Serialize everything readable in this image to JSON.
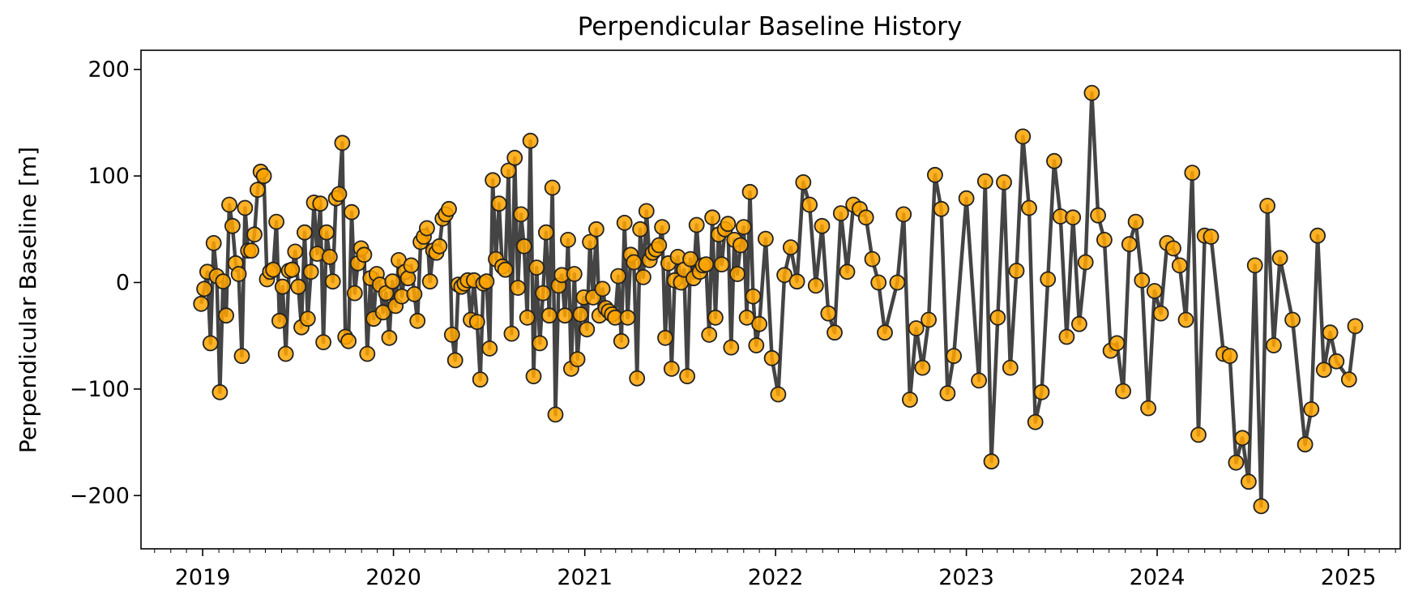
{
  "chart_data": {
    "type": "line",
    "title": "Perpendicular Baseline History",
    "xlabel": "",
    "ylabel": "Perpendicular Baseline [m]",
    "xlim": [
      "2018-09-05",
      "2025-04-10"
    ],
    "ylim": [
      -250,
      218
    ],
    "x_ticks": [
      "2019",
      "2020",
      "2021",
      "2022",
      "2023",
      "2024",
      "2025"
    ],
    "y_ticks": [
      {
        "value": 200,
        "label": "200"
      },
      {
        "value": 100,
        "label": "100"
      },
      {
        "value": 0,
        "label": "0"
      },
      {
        "value": -100,
        "label": "−100"
      },
      {
        "value": -200,
        "label": "−200"
      }
    ],
    "x_minor_ticks": "monthly",
    "grid": false,
    "legend": "none",
    "colors": {
      "line": "#444444",
      "marker_fill": "#FFA500",
      "marker_edge": "#222222",
      "background": "#ffffff"
    },
    "series": [
      {
        "marker": "circle",
        "points": [
          [
            "2018-12-29",
            -20
          ],
          [
            "2019-01-04",
            -6
          ],
          [
            "2019-01-10",
            10
          ],
          [
            "2019-01-16",
            -57
          ],
          [
            "2019-01-22",
            37
          ],
          [
            "2019-01-28",
            6
          ],
          [
            "2019-02-03",
            -103
          ],
          [
            "2019-02-09",
            1
          ],
          [
            "2019-02-15",
            -31
          ],
          [
            "2019-02-21",
            73
          ],
          [
            "2019-02-27",
            53
          ],
          [
            "2019-03-05",
            18
          ],
          [
            "2019-03-11",
            8
          ],
          [
            "2019-03-17",
            -69
          ],
          [
            "2019-03-23",
            70
          ],
          [
            "2019-03-29",
            30
          ],
          [
            "2019-04-04",
            30
          ],
          [
            "2019-04-10",
            45
          ],
          [
            "2019-04-16",
            87
          ],
          [
            "2019-04-22",
            104
          ],
          [
            "2019-04-28",
            100
          ],
          [
            "2019-05-04",
            3
          ],
          [
            "2019-05-10",
            10
          ],
          [
            "2019-05-16",
            12
          ],
          [
            "2019-05-22",
            57
          ],
          [
            "2019-05-28",
            -36
          ],
          [
            "2019-06-03",
            -4
          ],
          [
            "2019-06-09",
            -67
          ],
          [
            "2019-06-15",
            11
          ],
          [
            "2019-06-21",
            12
          ],
          [
            "2019-06-27",
            29
          ],
          [
            "2019-07-03",
            -4
          ],
          [
            "2019-07-09",
            -42
          ],
          [
            "2019-07-15",
            47
          ],
          [
            "2019-07-21",
            -34
          ],
          [
            "2019-07-27",
            10
          ],
          [
            "2019-08-02",
            75
          ],
          [
            "2019-08-08",
            27
          ],
          [
            "2019-08-14",
            74
          ],
          [
            "2019-08-20",
            -56
          ],
          [
            "2019-08-26",
            47
          ],
          [
            "2019-09-01",
            24
          ],
          [
            "2019-09-07",
            1
          ],
          [
            "2019-09-13",
            79
          ],
          [
            "2019-09-19",
            83
          ],
          [
            "2019-09-25",
            131
          ],
          [
            "2019-10-01",
            -51
          ],
          [
            "2019-10-07",
            -55
          ],
          [
            "2019-10-13",
            66
          ],
          [
            "2019-10-19",
            -10
          ],
          [
            "2019-10-25",
            18
          ],
          [
            "2019-10-31",
            32
          ],
          [
            "2019-11-06",
            26
          ],
          [
            "2019-11-12",
            -67
          ],
          [
            "2019-11-18",
            4
          ],
          [
            "2019-11-24",
            -34
          ],
          [
            "2019-11-30",
            8
          ],
          [
            "2019-12-06",
            -2
          ],
          [
            "2019-12-12",
            -28
          ],
          [
            "2019-12-18",
            -10
          ],
          [
            "2019-12-24",
            -52
          ],
          [
            "2019-12-30",
            1
          ],
          [
            "2020-01-05",
            -22
          ],
          [
            "2020-01-11",
            21
          ],
          [
            "2020-01-17",
            -13
          ],
          [
            "2020-01-23",
            10
          ],
          [
            "2020-01-29",
            4
          ],
          [
            "2020-02-04",
            16
          ],
          [
            "2020-02-10",
            -11
          ],
          [
            "2020-02-16",
            -36
          ],
          [
            "2020-02-22",
            38
          ],
          [
            "2020-02-28",
            43
          ],
          [
            "2020-03-05",
            51
          ],
          [
            "2020-03-11",
            1
          ],
          [
            "2020-03-17",
            30
          ],
          [
            "2020-03-23",
            28
          ],
          [
            "2020-03-29",
            34
          ],
          [
            "2020-04-04",
            60
          ],
          [
            "2020-04-10",
            64
          ],
          [
            "2020-04-16",
            69
          ],
          [
            "2020-04-22",
            -49
          ],
          [
            "2020-04-28",
            -73
          ],
          [
            "2020-05-04",
            -2
          ],
          [
            "2020-05-10",
            -4
          ],
          [
            "2020-05-16",
            -1
          ],
          [
            "2020-05-22",
            2
          ],
          [
            "2020-05-28",
            -35
          ],
          [
            "2020-06-03",
            2
          ],
          [
            "2020-06-09",
            -37
          ],
          [
            "2020-06-15",
            -91
          ],
          [
            "2020-06-21",
            -1
          ],
          [
            "2020-06-27",
            1
          ],
          [
            "2020-07-03",
            -62
          ],
          [
            "2020-07-09",
            96
          ],
          [
            "2020-07-15",
            22
          ],
          [
            "2020-07-21",
            74
          ],
          [
            "2020-07-27",
            15
          ],
          [
            "2020-08-02",
            12
          ],
          [
            "2020-08-08",
            105
          ],
          [
            "2020-08-14",
            -48
          ],
          [
            "2020-08-20",
            117
          ],
          [
            "2020-08-26",
            -5
          ],
          [
            "2020-09-01",
            64
          ],
          [
            "2020-09-07",
            34
          ],
          [
            "2020-09-13",
            -33
          ],
          [
            "2020-09-19",
            133
          ],
          [
            "2020-09-25",
            -88
          ],
          [
            "2020-10-01",
            14
          ],
          [
            "2020-10-07",
            -57
          ],
          [
            "2020-10-13",
            -10
          ],
          [
            "2020-10-19",
            47
          ],
          [
            "2020-10-25",
            -31
          ],
          [
            "2020-10-31",
            89
          ],
          [
            "2020-11-06",
            -124
          ],
          [
            "2020-11-12",
            -3
          ],
          [
            "2020-11-18",
            7
          ],
          [
            "2020-11-24",
            -31
          ],
          [
            "2020-11-30",
            40
          ],
          [
            "2020-12-06",
            -81
          ],
          [
            "2020-12-12",
            8
          ],
          [
            "2020-12-18",
            -72
          ],
          [
            "2020-12-24",
            -30
          ],
          [
            "2020-12-30",
            -14
          ],
          [
            "2021-01-05",
            -44
          ],
          [
            "2021-01-11",
            38
          ],
          [
            "2021-01-17",
            -14
          ],
          [
            "2021-01-23",
            50
          ],
          [
            "2021-01-29",
            -31
          ],
          [
            "2021-02-04",
            -6
          ],
          [
            "2021-02-10",
            -24
          ],
          [
            "2021-02-16",
            -27
          ],
          [
            "2021-02-22",
            -30
          ],
          [
            "2021-02-28",
            -33
          ],
          [
            "2021-03-06",
            6
          ],
          [
            "2021-03-12",
            -55
          ],
          [
            "2021-03-18",
            56
          ],
          [
            "2021-03-24",
            -33
          ],
          [
            "2021-03-30",
            26
          ],
          [
            "2021-04-05",
            19
          ],
          [
            "2021-04-11",
            -90
          ],
          [
            "2021-04-17",
            50
          ],
          [
            "2021-04-23",
            5
          ],
          [
            "2021-04-29",
            67
          ],
          [
            "2021-05-05",
            21
          ],
          [
            "2021-05-11",
            28
          ],
          [
            "2021-05-17",
            31
          ],
          [
            "2021-05-23",
            35
          ],
          [
            "2021-05-29",
            52
          ],
          [
            "2021-06-04",
            -52
          ],
          [
            "2021-06-10",
            18
          ],
          [
            "2021-06-16",
            -81
          ],
          [
            "2021-06-22",
            2
          ],
          [
            "2021-06-28",
            24
          ],
          [
            "2021-07-04",
            0
          ],
          [
            "2021-07-10",
            12
          ],
          [
            "2021-07-16",
            -88
          ],
          [
            "2021-07-22",
            22
          ],
          [
            "2021-07-28",
            4
          ],
          [
            "2021-08-03",
            54
          ],
          [
            "2021-08-09",
            10
          ],
          [
            "2021-08-15",
            16
          ],
          [
            "2021-08-21",
            17
          ],
          [
            "2021-08-27",
            -49
          ],
          [
            "2021-09-02",
            61
          ],
          [
            "2021-09-08",
            -33
          ],
          [
            "2021-09-14",
            45
          ],
          [
            "2021-09-20",
            17
          ],
          [
            "2021-09-26",
            50
          ],
          [
            "2021-10-02",
            55
          ],
          [
            "2021-10-08",
            -61
          ],
          [
            "2021-10-14",
            40
          ],
          [
            "2021-10-20",
            8
          ],
          [
            "2021-10-26",
            35
          ],
          [
            "2021-11-01",
            52
          ],
          [
            "2021-11-07",
            -33
          ],
          [
            "2021-11-13",
            85
          ],
          [
            "2021-11-19",
            -13
          ],
          [
            "2021-11-25",
            -59
          ],
          [
            "2021-12-01",
            -39
          ],
          [
            "2021-12-13",
            41
          ],
          [
            "2021-12-25",
            -71
          ],
          [
            "2022-01-06",
            -105
          ],
          [
            "2022-01-18",
            7
          ],
          [
            "2022-01-30",
            33
          ],
          [
            "2022-02-11",
            1
          ],
          [
            "2022-02-23",
            94
          ],
          [
            "2022-03-07",
            73
          ],
          [
            "2022-03-19",
            -3
          ],
          [
            "2022-03-31",
            53
          ],
          [
            "2022-04-12",
            -29
          ],
          [
            "2022-04-24",
            -47
          ],
          [
            "2022-05-06",
            65
          ],
          [
            "2022-05-18",
            10
          ],
          [
            "2022-05-30",
            73
          ],
          [
            "2022-06-11",
            69
          ],
          [
            "2022-06-23",
            61
          ],
          [
            "2022-07-05",
            22
          ],
          [
            "2022-07-17",
            0
          ],
          [
            "2022-07-29",
            -47
          ],
          [
            "2022-08-22",
            0
          ],
          [
            "2022-09-03",
            64
          ],
          [
            "2022-09-15",
            -110
          ],
          [
            "2022-09-27",
            -43
          ],
          [
            "2022-10-09",
            -80
          ],
          [
            "2022-10-21",
            -35
          ],
          [
            "2022-11-02",
            101
          ],
          [
            "2022-11-14",
            69
          ],
          [
            "2022-11-26",
            -104
          ],
          [
            "2022-12-08",
            -69
          ],
          [
            "2023-01-01",
            79
          ],
          [
            "2023-01-25",
            -92
          ],
          [
            "2023-02-06",
            95
          ],
          [
            "2023-02-18",
            -168
          ],
          [
            "2023-03-02",
            -33
          ],
          [
            "2023-03-14",
            94
          ],
          [
            "2023-03-26",
            -80
          ],
          [
            "2023-04-07",
            11
          ],
          [
            "2023-04-19",
            137
          ],
          [
            "2023-05-01",
            70
          ],
          [
            "2023-05-13",
            -131
          ],
          [
            "2023-05-25",
            -103
          ],
          [
            "2023-06-06",
            3
          ],
          [
            "2023-06-18",
            114
          ],
          [
            "2023-06-30",
            62
          ],
          [
            "2023-07-12",
            -51
          ],
          [
            "2023-07-24",
            61
          ],
          [
            "2023-08-05",
            -39
          ],
          [
            "2023-08-17",
            19
          ],
          [
            "2023-08-29",
            178
          ],
          [
            "2023-09-10",
            63
          ],
          [
            "2023-09-22",
            40
          ],
          [
            "2023-10-04",
            -64
          ],
          [
            "2023-10-16",
            -57
          ],
          [
            "2023-10-28",
            -102
          ],
          [
            "2023-11-09",
            36
          ],
          [
            "2023-11-21",
            57
          ],
          [
            "2023-12-03",
            2
          ],
          [
            "2023-12-15",
            -118
          ],
          [
            "2023-12-27",
            -8
          ],
          [
            "2024-01-08",
            -29
          ],
          [
            "2024-01-20",
            37
          ],
          [
            "2024-02-01",
            32
          ],
          [
            "2024-02-13",
            16
          ],
          [
            "2024-02-25",
            -35
          ],
          [
            "2024-03-08",
            103
          ],
          [
            "2024-03-20",
            -143
          ],
          [
            "2024-04-01",
            44
          ],
          [
            "2024-04-13",
            43
          ],
          [
            "2024-05-07",
            -67
          ],
          [
            "2024-05-19",
            -69
          ],
          [
            "2024-05-31",
            -169
          ],
          [
            "2024-06-12",
            -146
          ],
          [
            "2024-06-24",
            -187
          ],
          [
            "2024-07-06",
            16
          ],
          [
            "2024-07-18",
            -210
          ],
          [
            "2024-07-30",
            72
          ],
          [
            "2024-08-11",
            -59
          ],
          [
            "2024-08-23",
            23
          ],
          [
            "2024-09-16",
            -35
          ],
          [
            "2024-10-10",
            -152
          ],
          [
            "2024-10-22",
            -119
          ],
          [
            "2024-11-03",
            44
          ],
          [
            "2024-11-15",
            -82
          ],
          [
            "2024-11-27",
            -47
          ],
          [
            "2024-12-09",
            -74
          ],
          [
            "2025-01-02",
            -91
          ],
          [
            "2025-01-14",
            -41
          ]
        ]
      }
    ]
  }
}
